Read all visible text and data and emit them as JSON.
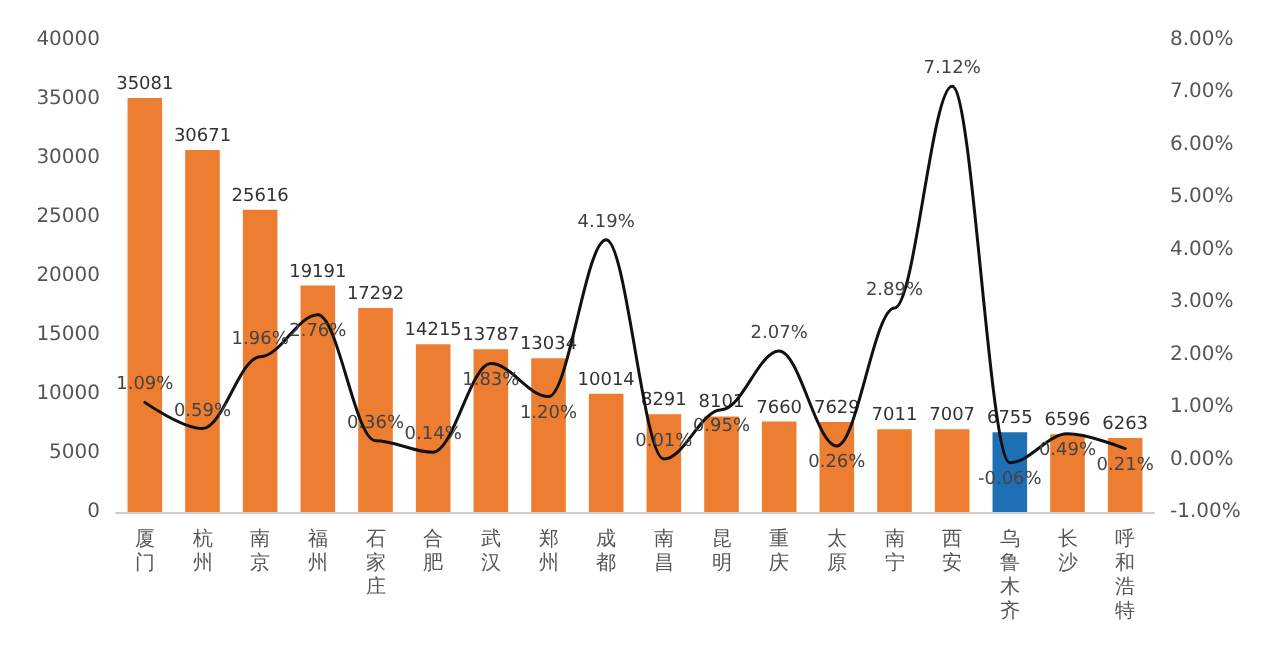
{
  "chart_data": {
    "type": "bar",
    "categories": [
      "厦门",
      "杭州",
      "南京",
      "福州",
      "石家庄",
      "合肥",
      "武汉",
      "郑州",
      "成都",
      "南昌",
      "昆明",
      "重庆",
      "太原",
      "南宁",
      "西安",
      "乌鲁木齐",
      "长沙",
      "呼和浩特"
    ],
    "series": [
      {
        "colors": [
          "#ed7d31",
          "#ed7d31",
          "#ed7d31",
          "#ed7d31",
          "#ed7d31",
          "#ed7d31",
          "#ed7d31",
          "#ed7d31",
          "#ed7d31",
          "#ed7d31",
          "#ed7d31",
          "#ed7d31",
          "#ed7d31",
          "#ed7d31",
          "#ed7d31",
          "#1f6fb5",
          "#ed7d31",
          "#ed7d31"
        ],
        "values": [
          35081,
          30671,
          25616,
          19191,
          17292,
          14215,
          13787,
          13034,
          10014,
          8291,
          8101,
          7660,
          7629,
          7011,
          7007,
          6755,
          6596,
          6263
        ],
        "data_labels": true
      },
      {
        "type": "line",
        "axis": "y2",
        "color": "#111111",
        "values": [
          1.09,
          0.59,
          1.96,
          2.76,
          0.36,
          0.14,
          1.83,
          1.2,
          4.19,
          0.01,
          0.95,
          2.07,
          0.26,
          2.89,
          7.12,
          -0.06,
          0.49,
          0.21
        ],
        "value_labels": [
          "1.09%",
          "0.59%",
          "1.96%",
          "2.76%",
          "0.36%",
          "0.14%",
          "1.83%",
          "1.20%",
          "4.19%",
          "0.01%",
          "0.95%",
          "2.07%",
          "0.26%",
          "2.89%",
          "7.12%",
          "-0.06%",
          "0.49%",
          "0.21%"
        ],
        "marker": "none"
      }
    ],
    "ylim": [
      0,
      40000
    ],
    "yticks": [
      0,
      5000,
      10000,
      15000,
      20000,
      25000,
      30000,
      35000,
      40000
    ],
    "y2lim": [
      -1,
      8
    ],
    "y2ticks": [
      {
        "value": -1,
        "label": "-1.00%"
      },
      {
        "value": 0,
        "label": "0.00%"
      },
      {
        "value": 1,
        "label": "1.00%"
      },
      {
        "value": 2,
        "label": "2.00%"
      },
      {
        "value": 3,
        "label": "3.00%"
      },
      {
        "value": 4,
        "label": "4.00%"
      },
      {
        "value": 5,
        "label": "5.00%"
      },
      {
        "value": 6,
        "label": "6.00%"
      },
      {
        "value": 7,
        "label": "7.00%"
      },
      {
        "value": 8,
        "label": "8.00%"
      }
    ],
    "grid": false
  }
}
